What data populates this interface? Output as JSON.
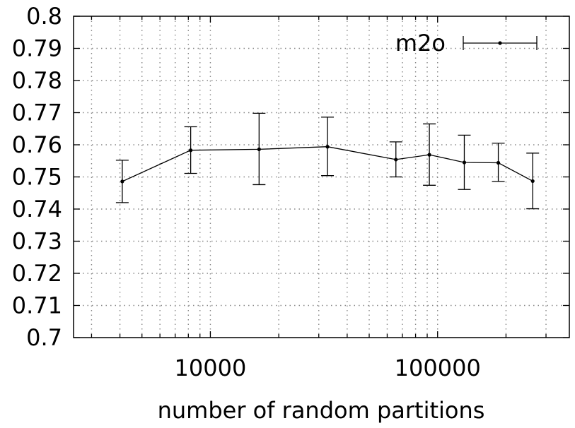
{
  "chart_data": {
    "type": "line",
    "xlabel": "number of random partitions",
    "ylabel": "",
    "x_scale": "log",
    "xlim": [
      2500,
      380000
    ],
    "ylim": [
      0.7,
      0.8
    ],
    "grid": true,
    "legend_position": "top-right",
    "y_ticks": [
      "0.7",
      "0.71",
      "0.72",
      "0.73",
      "0.74",
      "0.75",
      "0.76",
      "0.77",
      "0.78",
      "0.79",
      "0.8"
    ],
    "x_ticks": [
      {
        "value": 10000,
        "label": "10000"
      },
      {
        "value": 100000,
        "label": "100000"
      }
    ],
    "series": [
      {
        "name": "m2o",
        "x": [
          4096,
          8192,
          16384,
          32768,
          65536,
          92000,
          131072,
          185000,
          262144
        ],
        "y": [
          0.7486,
          0.7583,
          0.7586,
          0.7594,
          0.7554,
          0.7569,
          0.7545,
          0.7544,
          0.7487
        ],
        "err_low": [
          0.742,
          0.7511,
          0.7476,
          0.7504,
          0.75,
          0.7474,
          0.7461,
          0.7486,
          0.7401
        ],
        "err_high": [
          0.7552,
          0.7656,
          0.7698,
          0.7686,
          0.7609,
          0.7665,
          0.763,
          0.7605,
          0.7574
        ]
      }
    ]
  }
}
